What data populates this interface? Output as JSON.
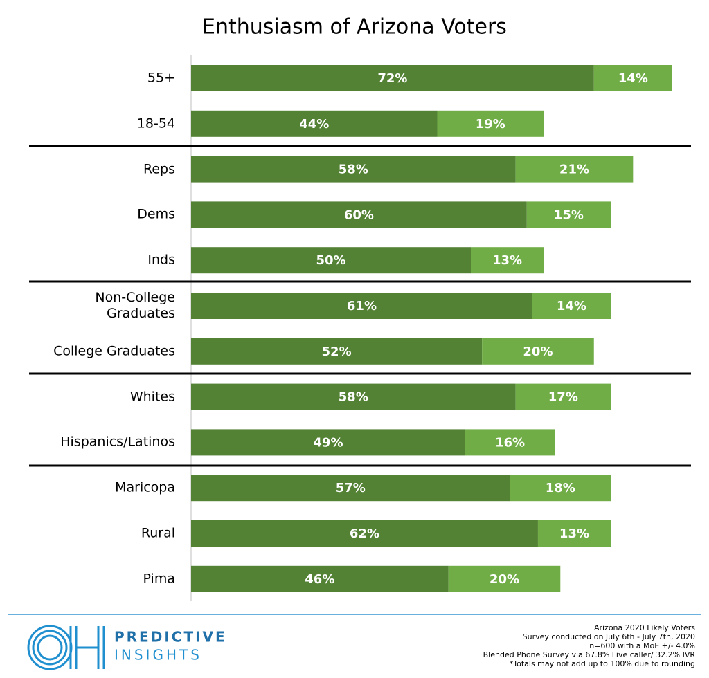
{
  "chart_data": {
    "type": "bar",
    "orientation": "horizontal",
    "stacked": true,
    "title": "Enthusiasm of Arizona Voters",
    "categories": [
      "55+",
      "18-54",
      "Reps",
      "Dems",
      "Inds",
      "Non-College Graduates",
      "College Graduates",
      "Whites",
      "Hispanics/Latinos",
      "Maricopa",
      "Rural",
      "Pima"
    ],
    "series": [
      {
        "color": "#548235",
        "values": [
          72,
          44,
          58,
          60,
          50,
          61,
          52,
          58,
          49,
          57,
          62,
          46
        ],
        "value_labels": [
          "72%",
          "44%",
          "58%",
          "60%",
          "50%",
          "61%",
          "52%",
          "58%",
          "49%",
          "57%",
          "62%",
          "46%"
        ]
      },
      {
        "color": "#70ad47",
        "values": [
          14,
          19,
          21,
          15,
          13,
          14,
          20,
          17,
          16,
          18,
          13,
          20
        ],
        "value_labels": [
          "14%",
          "19%",
          "21%",
          "15%",
          "13%",
          "14%",
          "20%",
          "17%",
          "16%",
          "18%",
          "13%",
          "20%"
        ]
      }
    ]
  },
  "logo": {
    "line1": "PREDICTIVE",
    "line2": "INSIGHTS"
  },
  "notes": [
    "Arizona 2020 Likely Voters",
    "Survey conducted on July 6th - July 7th, 2020",
    "n=600 with a MoE +/- 4.0%",
    "Blended Phone Survey via 67.8% Live caller/ 32.2% IVR",
    "*Totals may not add up to 100% due to rounding"
  ]
}
